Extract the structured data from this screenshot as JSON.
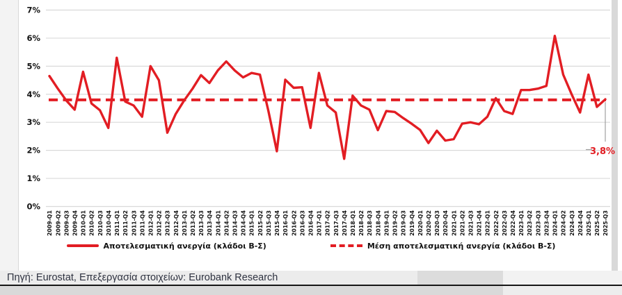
{
  "colors": {
    "line_red": "#e21d23",
    "grid_gray": "#d9d9d9",
    "tick_black": "#141414",
    "callout_gray": "#a0a0a0",
    "footer_text": "#2e3240"
  },
  "legend": {
    "series1_label": "Αποτελεσματική ανεργία (κλάδοι Β-Σ)",
    "series2_label": "Μέση αποτελεσματική ανεργία (κλάδοι Β-Σ)"
  },
  "footer": {
    "source_text": "Πηγή: Eurostat, Επεξεργασία στοιχείων: Eurobank Research"
  },
  "chart_data": {
    "type": "line",
    "title": "",
    "xlabel": "",
    "ylabel": "",
    "ylim": [
      0,
      7
    ],
    "y_ticks": [
      "0%",
      "1%",
      "2%",
      "3%",
      "4%",
      "5%",
      "6%",
      "7%"
    ],
    "grid": "horizontal",
    "legend_position": "bottom",
    "categories": [
      "2009-Q1",
      "2009-Q2",
      "2009-Q3",
      "2009-Q4",
      "2010-Q1",
      "2010-Q2",
      "2010-Q3",
      "2010-Q4",
      "2011-Q1",
      "2011-Q2",
      "2011-Q3",
      "2011-Q4",
      "2012-Q1",
      "2012-Q2",
      "2012-Q3",
      "2012-Q4",
      "2013-Q1",
      "2013-Q2",
      "2013-Q3",
      "2013-Q4",
      "2014-Q1",
      "2014-Q2",
      "2014-Q3",
      "2014-Q4",
      "2015-Q1",
      "2015-Q2",
      "2015-Q3",
      "2015-Q4",
      "2016-Q1",
      "2016-Q2",
      "2016-Q3",
      "2016-Q4",
      "2017-Q1",
      "2017-Q2",
      "2017-Q3",
      "2017-Q4",
      "2018-Q1",
      "2018-Q2",
      "2018-Q3",
      "2018-Q4",
      "2019-Q1",
      "2019-Q2",
      "2019-Q3",
      "2019-Q4",
      "2020-Q1",
      "2020-Q2",
      "2020-Q3",
      "2020-Q4",
      "2021-Q1",
      "2021-Q2",
      "2021-Q3",
      "2021-Q4",
      "2022-Q1",
      "2022-Q2",
      "2022-Q3",
      "2022-Q4",
      "2023-Q1",
      "2023-Q2",
      "2023-Q3",
      "2023-Q4",
      "2024-Q1",
      "2024-Q2",
      "2024-Q3",
      "2024-Q4",
      "2025-Q1",
      "2025-Q2",
      "2025-Q3"
    ],
    "series": [
      {
        "name": "Αποτελεσματική ανεργία (κλάδοι Β-Σ)",
        "style": "solid",
        "values": [
          4.65,
          4.2,
          3.78,
          3.45,
          4.8,
          3.67,
          3.43,
          2.8,
          5.3,
          3.74,
          3.6,
          3.2,
          5.0,
          4.5,
          2.63,
          3.3,
          3.78,
          4.2,
          4.68,
          4.4,
          4.85,
          5.17,
          4.85,
          4.6,
          4.76,
          4.7,
          3.4,
          1.97,
          4.52,
          4.23,
          4.25,
          2.8,
          4.76,
          3.6,
          3.35,
          1.7,
          3.95,
          3.6,
          3.45,
          2.72,
          3.4,
          3.37,
          3.15,
          2.95,
          2.73,
          2.26,
          2.7,
          2.35,
          2.4,
          2.95,
          3.0,
          2.93,
          3.2,
          3.86,
          3.4,
          3.3,
          4.15,
          4.15,
          4.2,
          4.3,
          6.08,
          4.7,
          4.0,
          3.35,
          4.7,
          3.55,
          3.82
        ]
      },
      {
        "name": "Μέση αποτελεσματική ανεργία (κλάδοι Β-Σ)",
        "style": "dashed",
        "mean_value": 3.8
      }
    ],
    "annotation": {
      "text": "3,8%",
      "value": 3.8
    }
  }
}
